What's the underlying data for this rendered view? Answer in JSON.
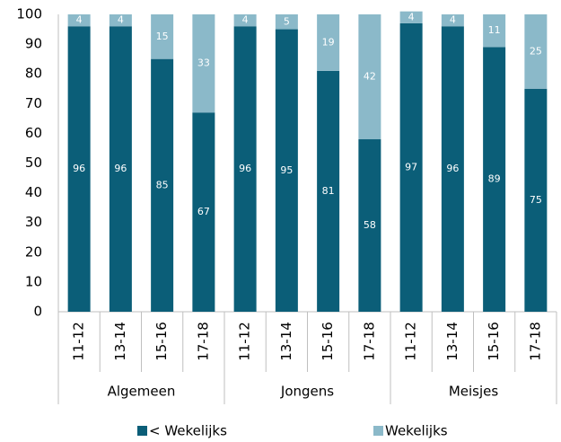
{
  "chart_data": {
    "type": "stacked-bar",
    "categories": [
      "11-12",
      "13-14",
      "15-16",
      "17-18",
      "11-12",
      "13-14",
      "15-16",
      "17-18",
      "11-12",
      "13-14",
      "15-16",
      "17-18"
    ],
    "groups": [
      "Algemeen",
      "Jongens",
      "Meisjes"
    ],
    "series": [
      {
        "name": "< Wekelijks",
        "color": "#0b5e78",
        "values": [
          96,
          96,
          85,
          67,
          96,
          95,
          81,
          58,
          97,
          96,
          89,
          75
        ]
      },
      {
        "name": "Wekelijks",
        "color": "#8bb9c9",
        "values": [
          4,
          4,
          15,
          33,
          4,
          5,
          19,
          42,
          4,
          4,
          11,
          25
        ]
      }
    ],
    "ylim": [
      0,
      100
    ],
    "yticks": [
      0,
      10,
      20,
      30,
      40,
      50,
      60,
      70,
      80,
      90,
      100
    ],
    "grid": false,
    "legend": "bottom"
  }
}
